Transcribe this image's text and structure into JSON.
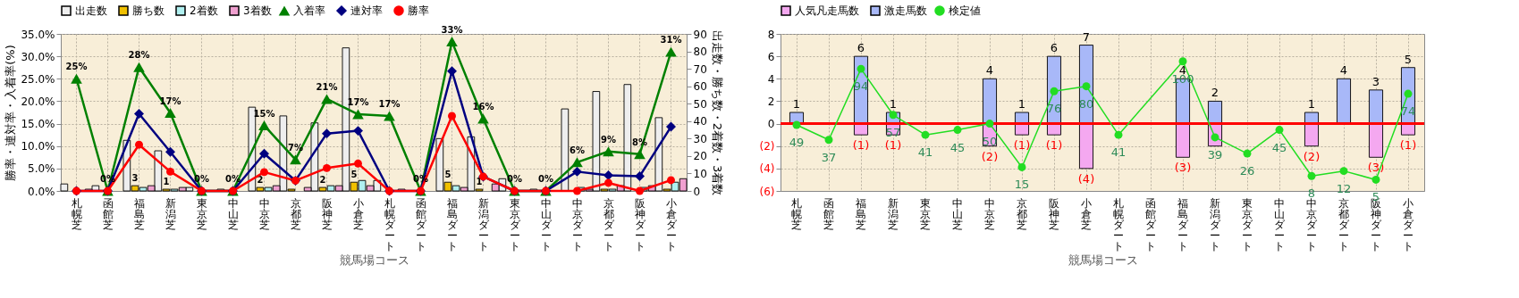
{
  "chart_data": [
    {
      "type": "bar",
      "categories": [
        "札幌芝",
        "函館芝",
        "福島芝",
        "新潟芝",
        "東京芝",
        "中山芝",
        "中京芝",
        "京都芝",
        "阪神芝",
        "小倉芝",
        "札幌ダート",
        "函館ダート",
        "福島ダート",
        "新潟ダート",
        "東京ダート",
        "中山ダート",
        "中京ダート",
        "京都ダート",
        "阪神ダート",
        "小倉ダート"
      ],
      "series": [
        {
          "name": "出走数",
          "type": "bar",
          "axis": "y2",
          "color": "#eeeeee",
          "values": [
            4,
            3,
            29,
            23,
            2,
            1,
            48,
            43,
            39,
            82,
            6,
            0,
            30,
            31,
            7,
            1,
            47,
            57,
            61,
            42
          ]
        },
        {
          "name": "勝ち数",
          "type": "bar",
          "axis": "y2",
          "color": "#f0c000",
          "values": [
            0,
            0,
            3,
            1,
            0,
            0,
            2,
            1,
            2,
            5,
            0,
            0,
            5,
            1,
            0,
            0,
            0,
            1,
            0,
            1
          ],
          "value_labels": [
            null,
            null,
            "3",
            "1",
            null,
            null,
            "2",
            null,
            "2",
            "5",
            null,
            null,
            "5",
            "1",
            null,
            null,
            null,
            null,
            null,
            null
          ]
        },
        {
          "name": "2着数",
          "type": "bar",
          "axis": "y2",
          "color": "#b0f0f0",
          "values": [
            0,
            0,
            2,
            1,
            0,
            0,
            2,
            0,
            3,
            6,
            0,
            0,
            3,
            0,
            0,
            0,
            2,
            1,
            2,
            5
          ]
        },
        {
          "name": "3着数",
          "type": "bar",
          "axis": "y2",
          "color": "#f0a0d0",
          "values": [
            1,
            0,
            3,
            2,
            0,
            0,
            3,
            2,
            3,
            3,
            1,
            0,
            2,
            4,
            0,
            0,
            1,
            3,
            3,
            7
          ]
        },
        {
          "name": "入着率",
          "type": "line",
          "axis": "y",
          "color": "#008000",
          "marker": "triangle",
          "values": [
            25.0,
            0,
            27.6,
            17.4,
            0,
            0,
            14.6,
            7.0,
            20.5,
            17.1,
            16.7,
            0,
            33.3,
            16.1,
            0,
            0,
            6.4,
            8.8,
            8.2,
            31.0
          ],
          "value_labels": [
            "25%",
            "0%",
            "28%",
            "17%",
            "0%",
            "0%",
            "15%",
            "7%",
            "21%",
            "17%",
            "17%",
            "0%",
            "33%",
            "16%",
            "0%",
            "0%",
            "6%",
            "9%",
            "8%",
            "31%"
          ]
        },
        {
          "name": "連対率",
          "type": "line",
          "axis": "y",
          "color": "#000080",
          "marker": "diamond",
          "values": [
            0,
            0,
            17.2,
            8.7,
            0,
            0,
            8.3,
            2.3,
            12.8,
            13.4,
            0,
            0,
            26.7,
            3.2,
            0,
            0,
            4.3,
            3.5,
            3.3,
            14.3
          ]
        },
        {
          "name": "勝率",
          "type": "line",
          "axis": "y",
          "color": "#ff0000",
          "marker": "circle",
          "values": [
            0,
            0,
            10.3,
            4.3,
            0,
            0,
            4.2,
            2.3,
            5.1,
            6.1,
            0,
            0,
            16.7,
            3.2,
            0,
            0,
            0,
            1.8,
            0,
            2.4
          ]
        }
      ],
      "ylim": [
        0,
        35
      ],
      "yticks": [
        {
          "value": 0,
          "label": "0.0%"
        },
        {
          "value": 5,
          "label": "5.0%"
        },
        {
          "value": 10,
          "label": "10.0%"
        },
        {
          "value": 15,
          "label": "15.0%"
        },
        {
          "value": 20,
          "label": "20.0%"
        },
        {
          "value": 25,
          "label": "25.0%"
        },
        {
          "value": 30,
          "label": "30.0%"
        },
        {
          "value": 35,
          "label": "35.0%"
        }
      ],
      "y2lim": [
        0,
        90
      ],
      "y2ticks": [
        0,
        10,
        20,
        30,
        40,
        50,
        60,
        70,
        80,
        90
      ],
      "xlabel": "競馬場コース",
      "ylabel": "勝率・連対率・入着率(%)",
      "y2label": "出走数・勝ち数・2着数・3着数",
      "grid": true,
      "legend": "top"
    },
    {
      "type": "bar",
      "stacked": true,
      "categories": [
        "札幌芝",
        "函館芝",
        "福島芝",
        "新潟芝",
        "東京芝",
        "中山芝",
        "中京芝",
        "京都芝",
        "阪神芝",
        "小倉芝",
        "札幌ダート",
        "函館ダート",
        "福島ダート",
        "新潟ダート",
        "東京ダート",
        "中山ダート",
        "中京ダート",
        "京都ダート",
        "阪神ダート",
        "小倉ダート"
      ],
      "series": [
        {
          "name": "人気凡走馬数",
          "type": "bar",
          "axis": "y",
          "color": "#f4a8f0",
          "values": [
            0,
            0,
            -1,
            -1,
            0,
            0,
            -2,
            -1,
            -1,
            -4,
            0,
            0,
            -3,
            -2,
            0,
            0,
            -2,
            0,
            -3,
            -1
          ],
          "value_labels": [
            null,
            null,
            "(1)",
            "(1)",
            null,
            null,
            "(2)",
            "(1)",
            "(1)",
            "(4)",
            null,
            null,
            "(3)",
            null,
            null,
            null,
            "(2)",
            null,
            "(3)",
            "(1)"
          ]
        },
        {
          "name": "激走馬数",
          "type": "bar",
          "axis": "y",
          "color": "#a8b8f8",
          "values": [
            1,
            0,
            6,
            1,
            0,
            0,
            4,
            1,
            6,
            7,
            0,
            0,
            4,
            2,
            0,
            0,
            1,
            4,
            3,
            5
          ],
          "value_labels": [
            "1",
            null,
            "6",
            "1",
            null,
            null,
            "4",
            "1",
            "6",
            "7",
            null,
            null,
            "4",
            "2",
            null,
            null,
            "1",
            "4",
            "3",
            "5"
          ]
        },
        {
          "name": "検定値",
          "type": "line",
          "axis": "y2",
          "color": "#22dd22",
          "marker": "circle",
          "values": [
            49,
            37,
            94,
            57,
            41,
            45,
            50,
            15,
            76,
            80,
            41,
            null,
            100,
            39,
            26,
            45,
            8,
            12,
            5,
            74
          ],
          "value_labels": [
            "49",
            "37",
            "94",
            "57",
            "41",
            "45",
            "50",
            "15",
            "76",
            "80",
            "41",
            null,
            "100",
            "39",
            "26",
            "45",
            "8",
            "12",
            "5",
            "74"
          ]
        }
      ],
      "ylim": [
        -6,
        8
      ],
      "yticks": [
        {
          "value": -6,
          "label": "(6)"
        },
        {
          "value": -4,
          "label": "(4)"
        },
        {
          "value": -2,
          "label": "(2)"
        },
        0,
        2,
        4,
        6,
        8
      ],
      "y2lim": [
        -4,
        122
      ],
      "ref_lines": [
        {
          "axis": "y",
          "value": 0,
          "color": "#ff0000"
        }
      ],
      "xlabel": "競馬場コース",
      "grid": true,
      "legend": "top"
    }
  ]
}
